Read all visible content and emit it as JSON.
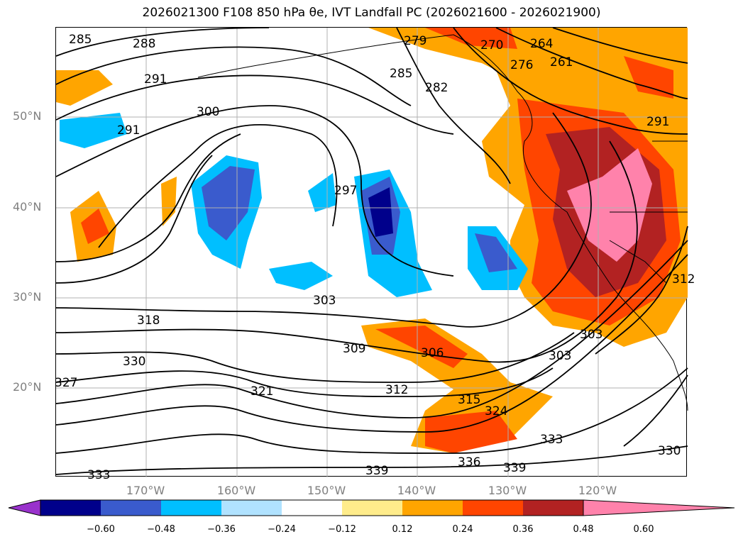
{
  "title": "2026021300 F108 850 hPa θe, IVT Landfall PC (2026021600 - 2026021900)",
  "map": {
    "lat_labels": [
      "50°N",
      "40°N",
      "30°N",
      "20°N"
    ],
    "lon_labels": [
      "170°W",
      "160°W",
      "150°W",
      "140°W",
      "130°W",
      "120°W"
    ],
    "contour_labels": [
      "285",
      "288",
      "291",
      "300",
      "291",
      "297",
      "279",
      "270",
      "264",
      "261",
      "276",
      "282",
      "285",
      "291",
      "303",
      "309",
      "306",
      "312",
      "315",
      "318",
      "324",
      "330",
      "327",
      "321",
      "303",
      "303",
      "312",
      "333",
      "336",
      "339",
      "339",
      "333",
      "330"
    ]
  },
  "colorbar": {
    "ticks": [
      "−0.60",
      "−0.48",
      "−0.36",
      "−0.24",
      "−0.12",
      "0.12",
      "0.24",
      "0.36",
      "0.48",
      "0.60"
    ],
    "colors": [
      "#9932cc",
      "#00008b",
      "#3a5bcd",
      "#00bfff",
      "#b0e2ff",
      "#ffffff",
      "#ffec8b",
      "#ffa500",
      "#ff4500",
      "#b22222",
      "#ff82ab"
    ]
  }
}
